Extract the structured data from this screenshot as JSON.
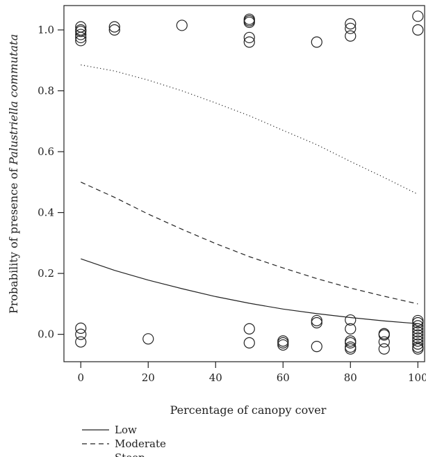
{
  "chart_data": {
    "type": "scatter",
    "xlabel": "Percentage of canopy cover",
    "ylabel_prefix": "Probability of presence of ",
    "ylabel_italic": "Palustriella commutata",
    "xlim": [
      -5,
      102
    ],
    "ylim": [
      -0.09,
      1.08
    ],
    "x_ticks": [
      0,
      20,
      40,
      60,
      80,
      100
    ],
    "y_ticks": [
      0.0,
      0.2,
      0.4,
      0.6,
      0.8,
      1.0
    ],
    "x_tick_labels": [
      "0",
      "20",
      "40",
      "60",
      "80",
      "100"
    ],
    "y_tick_labels": [
      "0.0",
      "0.2",
      "0.4",
      "0.6",
      "0.8",
      "1.0"
    ],
    "legend_placement": "bottom-left, below plot",
    "points": [
      [
        0,
        1.01
      ],
      [
        0,
        1.0
      ],
      [
        0,
        0.995
      ],
      [
        0,
        0.985
      ],
      [
        0,
        0.975
      ],
      [
        0,
        0.965
      ],
      [
        10,
        1.01
      ],
      [
        10,
        1.0
      ],
      [
        30,
        1.015
      ],
      [
        50,
        1.035
      ],
      [
        50,
        1.03
      ],
      [
        50,
        1.025
      ],
      [
        50,
        0.975
      ],
      [
        50,
        0.96
      ],
      [
        70,
        0.96
      ],
      [
        80,
        1.02
      ],
      [
        80,
        1.005
      ],
      [
        80,
        0.98
      ],
      [
        100,
        1.045
      ],
      [
        100,
        1.0
      ],
      [
        0,
        0.02
      ],
      [
        0,
        0.0
      ],
      [
        0,
        -0.025
      ],
      [
        20,
        -0.015
      ],
      [
        50,
        0.018
      ],
      [
        50,
        -0.028
      ],
      [
        60,
        -0.022
      ],
      [
        60,
        -0.028
      ],
      [
        60,
        -0.035
      ],
      [
        70,
        0.045
      ],
      [
        70,
        0.038
      ],
      [
        70,
        -0.04
      ],
      [
        80,
        0.047
      ],
      [
        80,
        0.018
      ],
      [
        80,
        -0.022
      ],
      [
        80,
        -0.028
      ],
      [
        80,
        -0.042
      ],
      [
        80,
        -0.048
      ],
      [
        90,
        0.002
      ],
      [
        90,
        -0.002
      ],
      [
        90,
        -0.025
      ],
      [
        90,
        -0.048
      ],
      [
        100,
        0.045
      ],
      [
        100,
        0.038
      ],
      [
        100,
        0.028
      ],
      [
        100,
        0.018
      ],
      [
        100,
        0.008
      ],
      [
        100,
        -0.002
      ],
      [
        100,
        -0.012
      ],
      [
        100,
        -0.022
      ],
      [
        100,
        -0.032
      ],
      [
        100,
        -0.042
      ],
      [
        100,
        -0.048
      ]
    ],
    "series": [
      {
        "name": "Low",
        "dash": "solid",
        "x": [
          0,
          10,
          20,
          30,
          40,
          50,
          60,
          70,
          80,
          90,
          100
        ],
        "y": [
          0.248,
          0.21,
          0.178,
          0.15,
          0.124,
          0.102,
          0.083,
          0.068,
          0.055,
          0.044,
          0.035
        ]
      },
      {
        "name": "Moderate",
        "dash": "dashed",
        "x": [
          0,
          10,
          20,
          30,
          40,
          50,
          60,
          70,
          80,
          90,
          100
        ],
        "y": [
          0.5,
          0.45,
          0.395,
          0.345,
          0.298,
          0.255,
          0.218,
          0.183,
          0.152,
          0.125,
          0.1
        ]
      },
      {
        "name": "Steep",
        "dash": "dotted",
        "x": [
          0,
          10,
          20,
          30,
          40,
          50,
          60,
          70,
          80,
          90,
          100
        ],
        "y": [
          0.885,
          0.865,
          0.835,
          0.8,
          0.76,
          0.718,
          0.67,
          0.623,
          0.568,
          0.515,
          0.46
        ]
      }
    ]
  }
}
